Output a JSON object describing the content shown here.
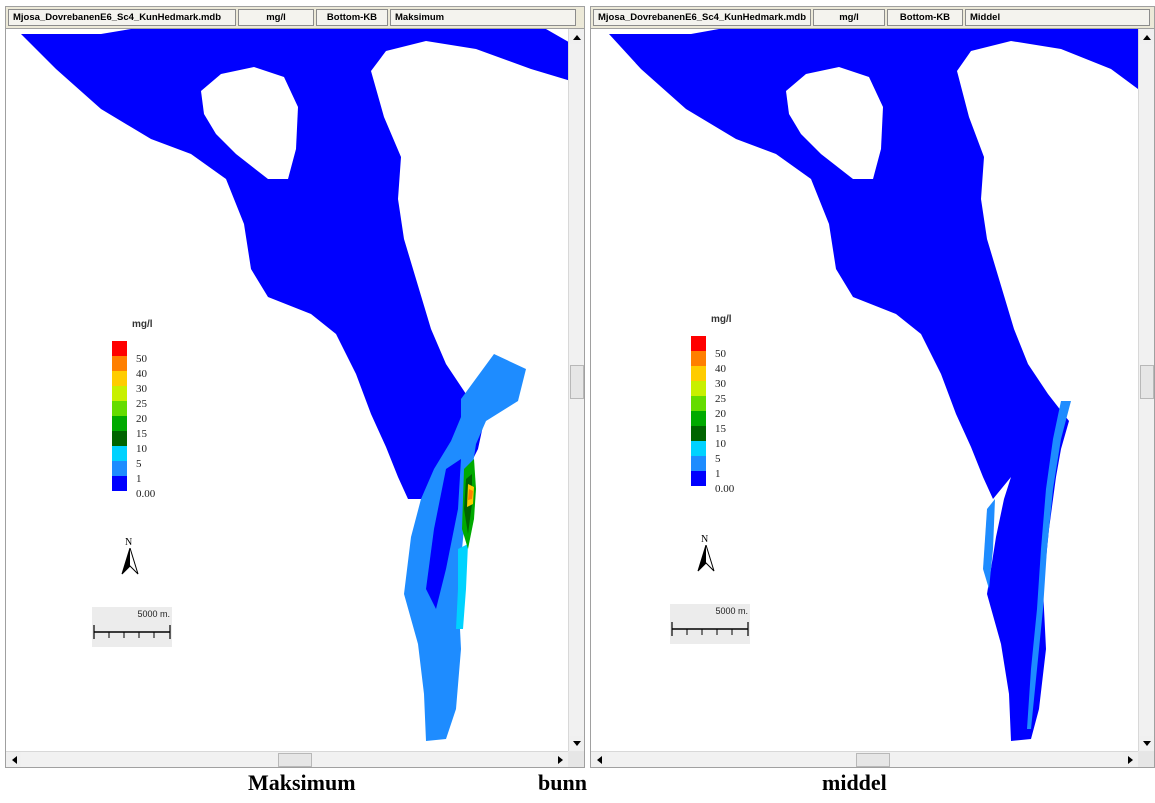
{
  "left_panel": {
    "header": {
      "file": "Mjosa_DovrebanenE6_Sc4_KunHedmark.mdb",
      "unit": "mg/l",
      "layer": "Bottom-KB",
      "statistic": "Maksimum"
    },
    "legend": {
      "title": "mg/l",
      "entries": [
        {
          "label": "50",
          "color": "#ff0000"
        },
        {
          "label": "40",
          "color": "#ff7f00"
        },
        {
          "label": "30",
          "color": "#ffcc00"
        },
        {
          "label": "25",
          "color": "#c8f000"
        },
        {
          "label": "20",
          "color": "#64dc00"
        },
        {
          "label": "15",
          "color": "#00aa00"
        },
        {
          "label": "10",
          "color": "#006400"
        },
        {
          "label": "5",
          "color": "#00d2ff"
        },
        {
          "label": "1",
          "color": "#1e8cff"
        },
        {
          "label": "0.00",
          "color": "#0000ff"
        }
      ]
    },
    "north_label": "N",
    "scale_label": "5000 m."
  },
  "right_panel": {
    "header": {
      "file": "Mjosa_DovrebanenE6_Sc4_KunHedmark.mdb",
      "unit": "mg/l",
      "layer": "Bottom-KB",
      "statistic": "Middel"
    },
    "legend": {
      "title": "mg/l",
      "entries": [
        {
          "label": "50",
          "color": "#ff0000"
        },
        {
          "label": "40",
          "color": "#ff7f00"
        },
        {
          "label": "30",
          "color": "#ffcc00"
        },
        {
          "label": "25",
          "color": "#c8f000"
        },
        {
          "label": "20",
          "color": "#64dc00"
        },
        {
          "label": "15",
          "color": "#00aa00"
        },
        {
          "label": "10",
          "color": "#006400"
        },
        {
          "label": "5",
          "color": "#00d2ff"
        },
        {
          "label": "1",
          "color": "#1e8cff"
        },
        {
          "label": "0.00",
          "color": "#0000ff"
        }
      ]
    },
    "north_label": "N",
    "scale_label": "5000 m."
  },
  "captions": {
    "left": "Maksimum",
    "middle": "bunn",
    "right": "middel"
  },
  "colors": {
    "lake_deep": "#0000ff",
    "lake_mid": "#1e8cff",
    "lake_light": "#00d2ff",
    "hotspot_green": "#00aa00",
    "hotspot_dark": "#006400",
    "hotspot_yellow": "#ffcc00",
    "hotspot_orange": "#ff7f00"
  },
  "icons": [
    "scroll-up-arrow-icon",
    "scroll-down-arrow-icon",
    "scroll-left-arrow-icon",
    "scroll-right-arrow-icon",
    "north-arrow-icon",
    "scale-bar-icon"
  ]
}
